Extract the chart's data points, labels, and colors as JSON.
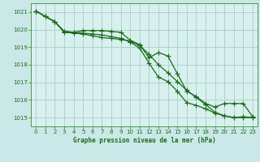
{
  "title": "Graphe pression niveau de la mer (hPa)",
  "background_color": "#cbe8e8",
  "plot_bg_color": "#d8f0ee",
  "grid_color": "#a8cfc8",
  "line_color": "#1a6b1a",
  "spine_color": "#4a9a4a",
  "xlim": [
    -0.5,
    23.5
  ],
  "ylim": [
    1014.5,
    1021.5
  ],
  "yticks": [
    1015,
    1016,
    1017,
    1018,
    1019,
    1020,
    1021
  ],
  "xticks": [
    0,
    1,
    2,
    3,
    4,
    5,
    6,
    7,
    8,
    9,
    10,
    11,
    12,
    13,
    14,
    15,
    16,
    17,
    18,
    19,
    20,
    21,
    22,
    23
  ],
  "series1": [
    1021.05,
    1020.75,
    1020.45,
    1019.9,
    1019.85,
    1019.95,
    1019.95,
    1019.95,
    1019.9,
    1019.85,
    1019.4,
    1019.15,
    1018.4,
    1018.7,
    1018.5,
    1017.5,
    1016.5,
    1016.2,
    1015.8,
    1015.6,
    1015.8,
    1015.8,
    1015.8,
    1015.05
  ],
  "series2": [
    1021.05,
    1020.75,
    1020.45,
    1019.9,
    1019.85,
    1019.8,
    1019.75,
    1019.7,
    1019.6,
    1019.5,
    1019.3,
    1018.95,
    1018.1,
    1017.3,
    1017.05,
    1016.5,
    1015.85,
    1015.7,
    1015.5,
    1015.25,
    1015.1,
    1015.0,
    1015.05,
    1015.0
  ],
  "series3": [
    1021.05,
    1020.75,
    1020.45,
    1019.85,
    1019.8,
    1019.75,
    1019.65,
    1019.55,
    1019.5,
    1019.45,
    1019.35,
    1019.1,
    1018.6,
    1018.0,
    1017.55,
    1017.05,
    1016.55,
    1016.15,
    1015.75,
    1015.3,
    1015.1,
    1015.0,
    1015.0,
    1015.0
  ]
}
